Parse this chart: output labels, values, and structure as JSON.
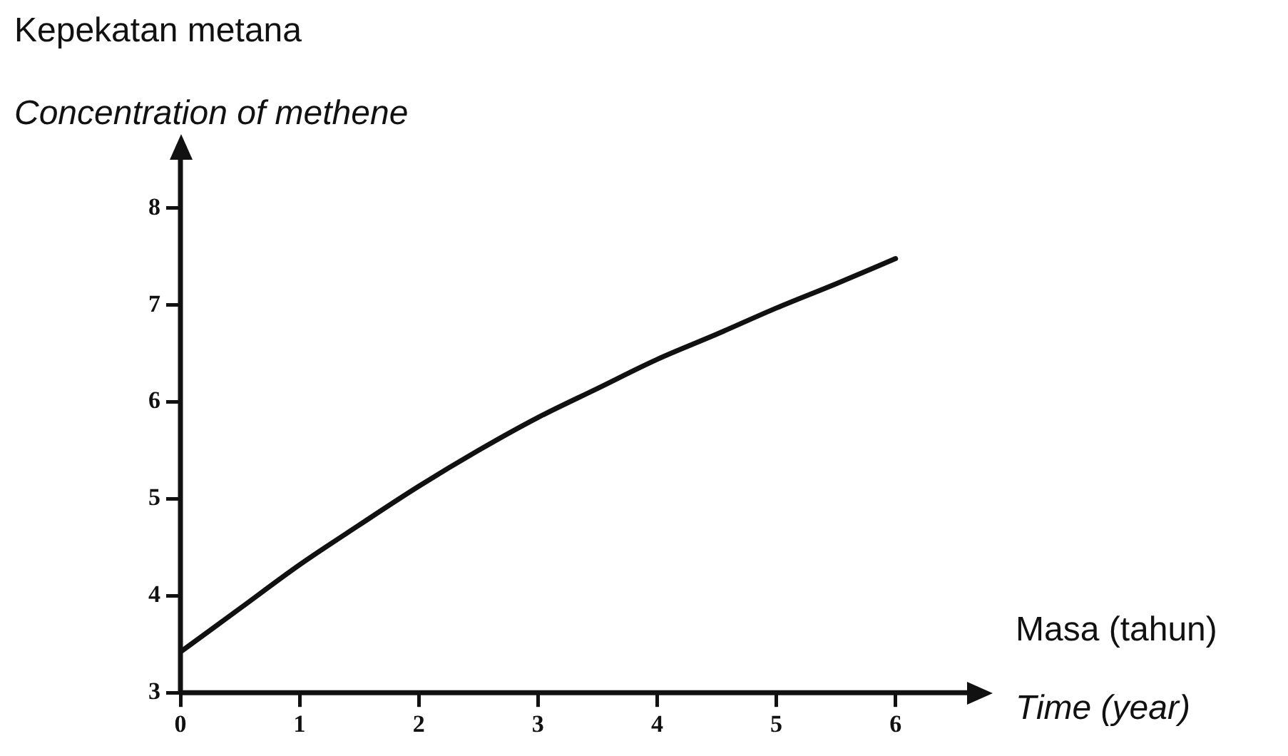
{
  "chart_data": {
    "type": "line",
    "xlabel": "Masa (tahun)\nTime (year)",
    "ylabel": "Kepekatan metana\nConcentration of methene",
    "x": [
      0,
      0.5,
      1,
      1.5,
      2,
      2.5,
      3,
      3.5,
      4,
      4.5,
      5,
      5.5,
      6
    ],
    "values": [
      3.42,
      3.87,
      4.32,
      4.73,
      5.13,
      5.5,
      5.84,
      6.14,
      6.44,
      6.7,
      6.97,
      7.22,
      7.48
    ],
    "color": "#111111",
    "marker": "none",
    "xlim": [
      0,
      6.6
    ],
    "xticks": [
      0,
      1,
      2,
      3,
      4,
      5,
      6
    ],
    "ylim": [
      3,
      8.5
    ],
    "yticks": [
      3,
      4,
      5,
      6,
      7,
      8
    ]
  }
}
